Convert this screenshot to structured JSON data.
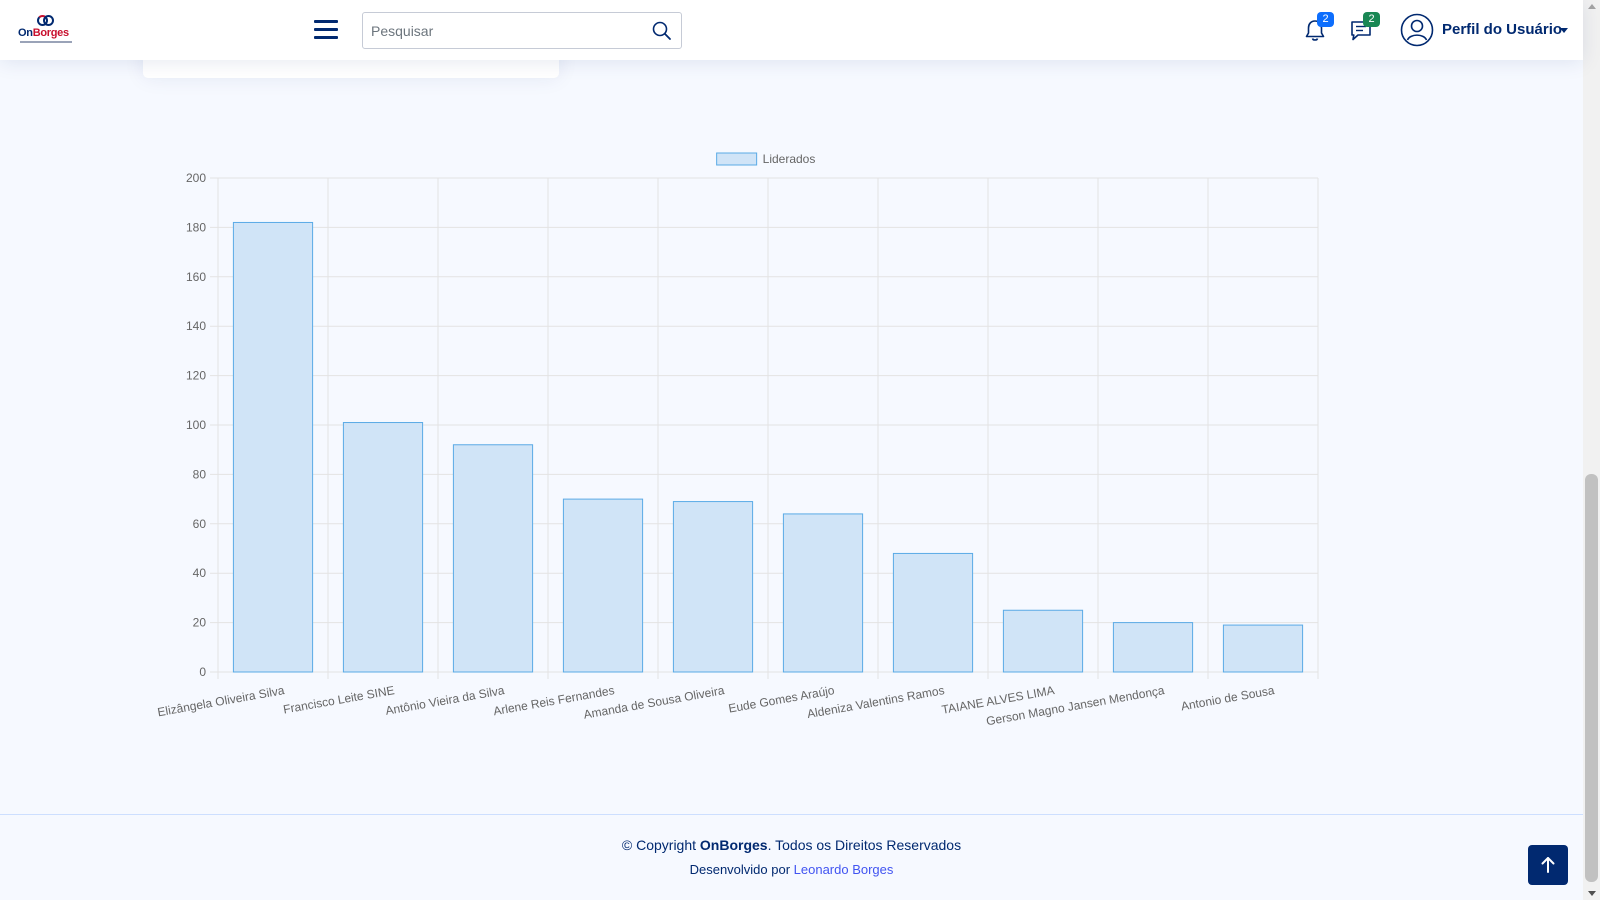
{
  "header": {
    "logo": {
      "text_on": "On",
      "text_borges": "Borges"
    },
    "search": {
      "placeholder": "Pesquisar"
    },
    "notifications": {
      "count": "2"
    },
    "messages": {
      "count": "2"
    },
    "profile": {
      "label": "Perfil do Usuário"
    }
  },
  "chart_data": {
    "type": "bar",
    "legend": [
      "Liderados"
    ],
    "legend_position": "top",
    "categories": [
      "Elizângela Oliveira Silva",
      "Francisco Leite SINE",
      "Antônio Vieira da Silva",
      "Arlene Reis Fernandes",
      "Amanda de Sousa Oliveira",
      "Eude Gomes Araújo",
      "Aldeniza Valentins Ramos",
      "TAIANE ALVES LIMA",
      "Gerson Magno Jansen Mendonça",
      "Antonio de Sousa"
    ],
    "series": [
      {
        "name": "Liderados",
        "values": [
          182,
          101,
          92,
          70,
          69,
          64,
          48,
          25,
          20,
          19
        ]
      }
    ],
    "ylim": [
      0,
      200
    ],
    "yticks": [
      0,
      20,
      40,
      60,
      80,
      100,
      120,
      140,
      160,
      180,
      200
    ],
    "grid": true,
    "colors": {
      "fill": "#d0e4f7",
      "stroke": "#5aaae6",
      "grid": "#e3e3e3",
      "tick": "#666666"
    }
  },
  "footer": {
    "copyright_prefix": "© Copyright ",
    "brand": "OnBorges",
    "copyright_suffix": ". Todos os Direitos Reservados",
    "developed_by": "Desenvolvido por ",
    "developer": "Leonardo Borges"
  }
}
